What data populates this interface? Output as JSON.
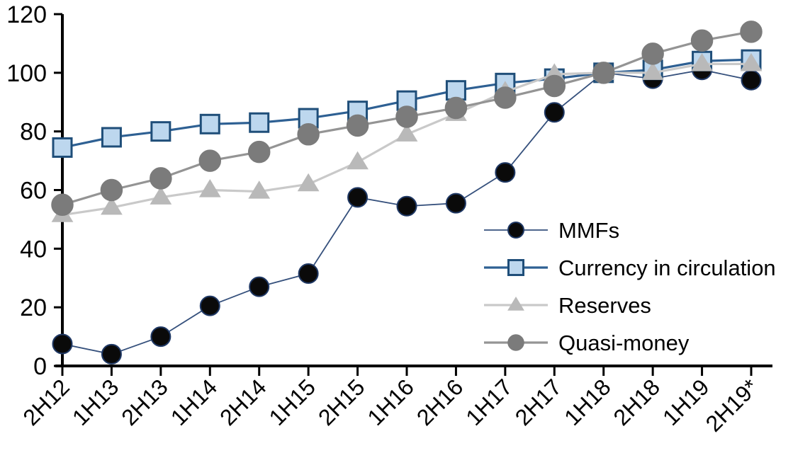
{
  "chart_data": {
    "type": "line",
    "title": "",
    "xlabel": "",
    "ylabel": "",
    "categories": [
      "2H12",
      "1H13",
      "2H13",
      "1H14",
      "2H14",
      "1H15",
      "2H15",
      "1H16",
      "2H16",
      "1H17",
      "2H17",
      "1H18",
      "2H18",
      "1H19",
      "2H19*"
    ],
    "series": [
      {
        "name": "MMFs",
        "marker": "circle",
        "values": [
          7.5,
          4,
          10,
          20.5,
          27,
          31.5,
          57.5,
          54.5,
          55.5,
          66,
          86.5,
          100,
          98,
          101,
          97.5
        ],
        "line_color": "#35507C",
        "line_width": 1.8,
        "marker_fill": "#0A0A0A",
        "marker_stroke": "#1F3864",
        "marker_size": 13.5
      },
      {
        "name": "Currency in circulation",
        "marker": "square",
        "values": [
          74.5,
          78,
          80,
          82.5,
          83,
          84.5,
          87,
          90.5,
          94,
          96.5,
          98,
          100,
          101,
          104,
          104.5
        ],
        "line_color": "#2E6093",
        "line_width": 3.2,
        "marker_fill": "#BDD7EE",
        "marker_stroke": "#1F4E79",
        "marker_size": 13
      },
      {
        "name": "Reserves",
        "marker": "triangle",
        "values": [
          51.5,
          54,
          57.5,
          60,
          59.5,
          62,
          69.5,
          79,
          86,
          93.5,
          99.5,
          100,
          100,
          103,
          103
        ],
        "line_color": "#C9C9C9",
        "line_width": 3.2,
        "marker_fill": "#B9B9B9",
        "marker_stroke": "#B9B9B9",
        "marker_size": 14.5
      },
      {
        "name": "Quasi-money",
        "marker": "circle",
        "values": [
          55,
          60,
          64,
          70,
          73,
          79,
          82,
          85,
          88,
          91.5,
          95.5,
          100,
          106.5,
          111,
          114
        ],
        "line_color": "#949494",
        "line_width": 3.2,
        "marker_fill": "#7B7B7B",
        "marker_stroke": "#7B7B7B",
        "marker_size": 15
      }
    ],
    "ylim": [
      0,
      120
    ],
    "ytick_step": 20,
    "ytick_labels": [
      "0",
      "20",
      "40",
      "60",
      "80",
      "100",
      "120"
    ],
    "grid": false,
    "legend_position": "inside-right",
    "legend_entries": [
      "MMFs",
      "Currency in circulation",
      "Reserves",
      "Quasi-money"
    ],
    "axis_color": "#000000"
  }
}
